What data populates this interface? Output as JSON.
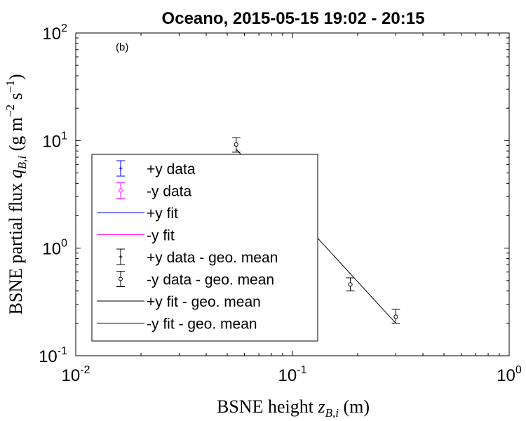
{
  "chart_data": {
    "type": "scatter",
    "title": "Oceano, 2015-05-15 19:02 - 20:15",
    "panel_label": "(b)",
    "xlabel": {
      "text": "BSNE height ",
      "sym": "z",
      "sub": "B,i",
      "unit": " (m)"
    },
    "ylabel": {
      "text": "BSNE partial flux ",
      "sym": "q",
      "sub": "B,i",
      "unit_pre": " (g m",
      "exp1": "−2",
      "unit_mid": " s",
      "exp2": "−1",
      "unit_post": ")"
    },
    "xscale": "log",
    "yscale": "log",
    "xlim": [
      0.01,
      1
    ],
    "ylim": [
      0.1,
      100
    ],
    "xticks": [
      {
        "v": 0.01,
        "base": "10",
        "exp": "-2"
      },
      {
        "v": 0.1,
        "base": "10",
        "exp": "-1"
      },
      {
        "v": 1,
        "base": "10",
        "exp": "0"
      }
    ],
    "yticks": [
      {
        "v": 0.1,
        "base": "10",
        "exp": "-1"
      },
      {
        "v": 1,
        "base": "10",
        "exp": "0"
      },
      {
        "v": 10,
        "base": "10",
        "exp": "1"
      },
      {
        "v": 100,
        "base": "10",
        "exp": "2"
      }
    ],
    "legend_position": "left-center",
    "legend": [
      {
        "label": "+y data",
        "marker": "plus",
        "line": false,
        "errorbar": true,
        "color": "#0000ff"
      },
      {
        "label": "-y data",
        "marker": "circle",
        "line": false,
        "errorbar": true,
        "color": "#ff00ff"
      },
      {
        "label": "+y fit",
        "marker": "none",
        "line": true,
        "errorbar": false,
        "color": "#0000ff"
      },
      {
        "label": "-y fit",
        "marker": "none",
        "line": true,
        "errorbar": false,
        "color": "#ff00ff"
      },
      {
        "label": "+y data - geo. mean",
        "marker": "plus",
        "line": false,
        "errorbar": true,
        "color": "#000000"
      },
      {
        "label": "-y data - geo. mean",
        "marker": "circle",
        "line": false,
        "errorbar": true,
        "color": "#000000"
      },
      {
        "label": "+y fit - geo. mean",
        "marker": "none",
        "line": true,
        "errorbar": false,
        "color": "#000000"
      },
      {
        "label": "-y fit - geo. mean",
        "marker": "none",
        "line": true,
        "errorbar": false,
        "color": "#000000"
      }
    ],
    "series": [
      {
        "name": "-y data - geo. mean",
        "color": "#000000",
        "marker": "circle",
        "points": [
          {
            "x": 0.055,
            "y": 9.2,
            "ylo": 7.8,
            "yhi": 10.6
          },
          {
            "x": 0.185,
            "y": 0.46,
            "ylo": 0.4,
            "yhi": 0.53
          },
          {
            "x": 0.3,
            "y": 0.23,
            "ylo": 0.2,
            "yhi": 0.27
          }
        ]
      }
    ],
    "fit_line": {
      "name": "-y fit - geo. mean",
      "color": "#000000",
      "points": [
        {
          "x": 0.055,
          "y": 8.3
        },
        {
          "x": 0.3,
          "y": 0.2
        }
      ]
    }
  }
}
